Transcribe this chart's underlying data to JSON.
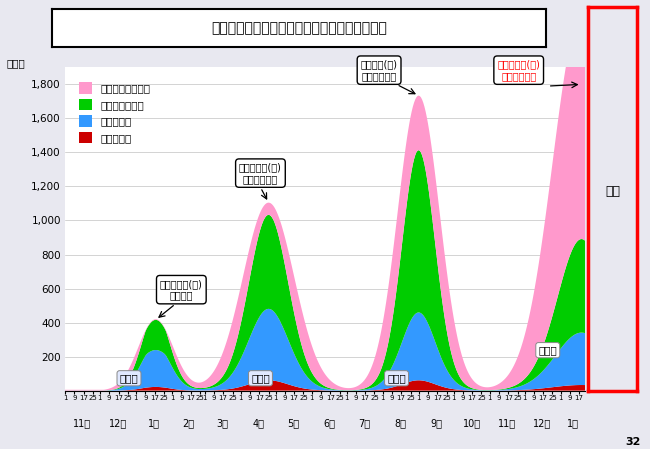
{
  "title": "奈良県内における療養者数、入院者数等の推移",
  "ylabel": "（人）",
  "colors": {
    "jusha": "#cc0000",
    "nyuin": "#3399ff",
    "shukuhaku": "#00cc00",
    "taiki": "#ff99cc"
  },
  "legend_labels": [
    "：入院待機者等数",
    "：宿泊療養者数",
    "：入院者数",
    "：重症者数"
  ],
  "ylim": [
    0,
    1900
  ],
  "background": "#e8e8f0"
}
